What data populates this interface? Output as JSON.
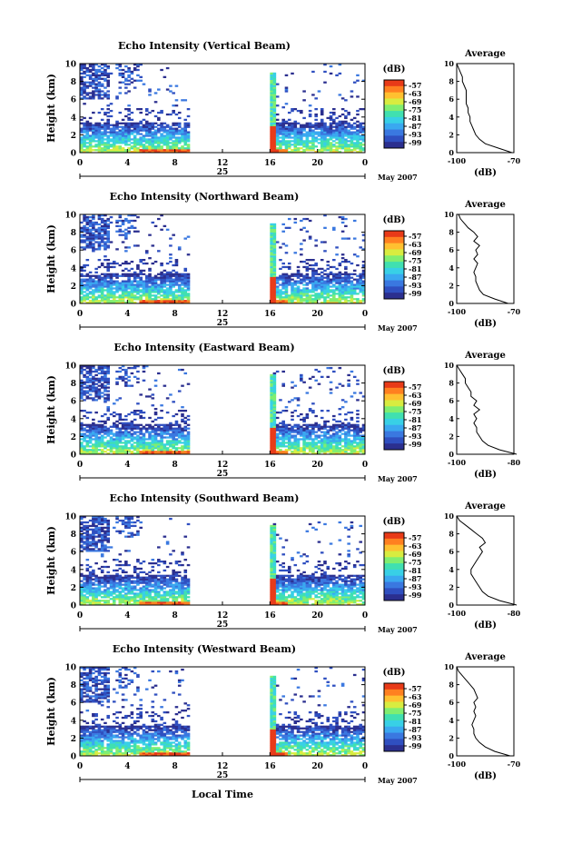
{
  "date_label": "May 2007",
  "day_label": "25",
  "xlabel": "Local Time",
  "colorbar_unit": "(dB)",
  "colorbar_ticks": [
    "-57",
    "-63",
    "-69",
    "-75",
    "-81",
    "-87",
    "-93",
    "-99"
  ],
  "colormap": [
    "#2b2f8f",
    "#2f4fc0",
    "#3a78e0",
    "#3aa8f0",
    "#38d0e6",
    "#40e0b0",
    "#80ee70",
    "#d8ec40",
    "#ffc030",
    "#ff8020",
    "#e83a18"
  ],
  "gap_color": "#ffffff",
  "chart_data": [
    {
      "type": "heatmap",
      "title": "Echo Intensity (Vertical Beam)",
      "ylabel": "Height (km)",
      "xlim": [
        0,
        24
      ],
      "ylim": [
        0,
        10
      ],
      "x_ticks": [
        "0",
        "4",
        "8",
        "12",
        "16",
        "20",
        "0"
      ],
      "y_ticks": [
        "0",
        "2",
        "4",
        "6",
        "8",
        "10"
      ],
      "data_gap_hours": [
        9.2,
        16
      ],
      "profile": {
        "title": "Average",
        "xlabel": "(dB)",
        "xlim": [
          -100,
          -70
        ],
        "x_ticks": [
          "-100",
          "-70"
        ],
        "y_ticks": [
          "0",
          "2",
          "4",
          "6",
          "8",
          "10"
        ],
        "heights": [
          0,
          0.5,
          1,
          1.5,
          2,
          2.5,
          3,
          3.5,
          4,
          4.5,
          5,
          5.5,
          6,
          6.5,
          7,
          7.5,
          8,
          8.5,
          9,
          9.5,
          10
        ],
        "values": [
          -71,
          -78,
          -85,
          -88,
          -90,
          -91,
          -92,
          -93,
          -93,
          -94,
          -94,
          -95,
          -95,
          -95,
          -95,
          -96,
          -97,
          -97,
          -98,
          -99,
          -100
        ]
      }
    },
    {
      "type": "heatmap",
      "title": "Echo Intensity (Northward Beam)",
      "ylabel": "Height (km)",
      "xlim": [
        0,
        24
      ],
      "ylim": [
        0,
        10
      ],
      "x_ticks": [
        "0",
        "4",
        "8",
        "12",
        "16",
        "20",
        "0"
      ],
      "y_ticks": [
        "0",
        "2",
        "4",
        "6",
        "8",
        "10"
      ],
      "data_gap_hours": [
        9.2,
        16
      ],
      "profile": {
        "title": "Average",
        "xlabel": "(dB)",
        "xlim": [
          -100,
          -70
        ],
        "x_ticks": [
          "-100",
          "-70"
        ],
        "y_ticks": [
          "0",
          "2",
          "4",
          "6",
          "8",
          "10"
        ],
        "heights": [
          0,
          0.5,
          1,
          1.5,
          2,
          2.5,
          3,
          3.5,
          4,
          4.5,
          5,
          5.5,
          6,
          6.5,
          7,
          7.5,
          8,
          8.5,
          9,
          9.5,
          10
        ],
        "values": [
          -73,
          -80,
          -86,
          -88,
          -89,
          -90,
          -90,
          -91,
          -90,
          -89,
          -91,
          -89,
          -90,
          -88,
          -91,
          -89,
          -91,
          -94,
          -96,
          -98,
          -99
        ]
      }
    },
    {
      "type": "heatmap",
      "title": "Echo Intensity (Eastward Beam)",
      "ylabel": "Height (km)",
      "xlim": [
        0,
        24
      ],
      "ylim": [
        0,
        10
      ],
      "x_ticks": [
        "0",
        "4",
        "8",
        "12",
        "16",
        "20",
        "0"
      ],
      "y_ticks": [
        "0",
        "2",
        "4",
        "6",
        "8",
        "10"
      ],
      "data_gap_hours": [
        9.2,
        16
      ],
      "profile": {
        "title": "Average",
        "xlabel": "(dB)",
        "xlim": [
          -100,
          -80
        ],
        "x_ticks": [
          "-100",
          "-80"
        ],
        "y_ticks": [
          "0",
          "2",
          "4",
          "6",
          "8",
          "10"
        ],
        "heights": [
          0,
          0.5,
          1,
          1.5,
          2,
          2.5,
          3,
          3.5,
          4,
          4.5,
          5,
          5.5,
          6,
          6.5,
          7,
          7.5,
          8,
          8.5,
          9,
          9.5,
          10
        ],
        "values": [
          -79,
          -85,
          -89,
          -91,
          -92,
          -93,
          -93,
          -94,
          -93,
          -94,
          -92,
          -94,
          -93,
          -95,
          -95,
          -96,
          -97,
          -97,
          -98,
          -99,
          -100
        ]
      }
    },
    {
      "type": "heatmap",
      "title": "Echo Intensity (Southward Beam)",
      "ylabel": "Height (km)",
      "xlim": [
        0,
        24
      ],
      "ylim": [
        0,
        10
      ],
      "x_ticks": [
        "0",
        "4",
        "8",
        "12",
        "16",
        "20",
        "0"
      ],
      "y_ticks": [
        "0",
        "2",
        "4",
        "6",
        "8",
        "10"
      ],
      "data_gap_hours": [
        9.2,
        16
      ],
      "profile": {
        "title": "Average",
        "xlabel": "(dB)",
        "xlim": [
          -100,
          -80
        ],
        "x_ticks": [
          "-100",
          "-80"
        ],
        "y_ticks": [
          "0",
          "2",
          "4",
          "6",
          "8",
          "10"
        ],
        "heights": [
          0,
          0.5,
          1,
          1.5,
          2,
          2.5,
          3,
          3.5,
          4,
          4.5,
          5,
          5.5,
          6,
          6.5,
          7,
          7.5,
          8,
          8.5,
          9,
          9.5,
          10
        ],
        "values": [
          -79,
          -85,
          -89,
          -91,
          -92,
          -93,
          -94,
          -95,
          -95,
          -94,
          -93,
          -92,
          -91,
          -92,
          -90,
          -91,
          -93,
          -95,
          -97,
          -99,
          -100
        ]
      }
    },
    {
      "type": "heatmap",
      "title": "Echo Intensity (Westward Beam)",
      "ylabel": "Height (km)",
      "xlim": [
        0,
        24
      ],
      "ylim": [
        0,
        10
      ],
      "x_ticks": [
        "0",
        "4",
        "8",
        "12",
        "16",
        "20",
        "0"
      ],
      "y_ticks": [
        "0",
        "2",
        "4",
        "6",
        "8",
        "10"
      ],
      "data_gap_hours": [
        9.2,
        16
      ],
      "profile": {
        "title": "Average",
        "xlabel": "(dB)",
        "xlim": [
          -100,
          -70
        ],
        "x_ticks": [
          "-100",
          "-70"
        ],
        "y_ticks": [
          "0",
          "2",
          "4",
          "6",
          "8",
          "10"
        ],
        "heights": [
          0,
          0.5,
          1,
          1.5,
          2,
          2.5,
          3,
          3.5,
          4,
          4.5,
          5,
          5.5,
          6,
          6.5,
          7,
          7.5,
          8,
          8.5,
          9,
          9.5,
          10
        ],
        "values": [
          -72,
          -80,
          -85,
          -88,
          -90,
          -91,
          -91,
          -92,
          -91,
          -90,
          -91,
          -90,
          -91,
          -89,
          -90,
          -91,
          -93,
          -95,
          -97,
          -99,
          -100
        ]
      }
    }
  ]
}
